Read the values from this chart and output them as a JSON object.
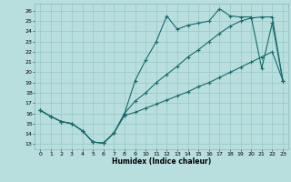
{
  "xlabel": "Humidex (Indice chaleur)",
  "bg_color": "#b8dede",
  "grid_color": "#98c8c8",
  "line_color": "#1a6b6b",
  "xlim": [
    -0.5,
    23.5
  ],
  "ylim": [
    12.5,
    26.7
  ],
  "xticks": [
    0,
    1,
    2,
    3,
    4,
    5,
    6,
    7,
    8,
    9,
    10,
    11,
    12,
    13,
    14,
    15,
    16,
    17,
    18,
    19,
    20,
    21,
    22,
    23
  ],
  "yticks": [
    13,
    14,
    15,
    16,
    17,
    18,
    19,
    20,
    21,
    22,
    23,
    24,
    25,
    26
  ],
  "line1_x": [
    0,
    1,
    2,
    3,
    4,
    5,
    6,
    7,
    8,
    9,
    10,
    11,
    12,
    13,
    14,
    15,
    16,
    17,
    18,
    19,
    20,
    21,
    22,
    23
  ],
  "line1_y": [
    16.3,
    15.7,
    15.2,
    15.0,
    14.3,
    13.2,
    13.1,
    14.1,
    16.0,
    19.2,
    21.2,
    23.0,
    25.5,
    24.2,
    24.6,
    24.8,
    25.0,
    26.2,
    25.5,
    25.4,
    25.4,
    20.4,
    24.8,
    19.2
  ],
  "line2_x": [
    0,
    1,
    2,
    3,
    4,
    5,
    6,
    7,
    8,
    9,
    10,
    11,
    12,
    13,
    14,
    15,
    16,
    17,
    18,
    19,
    20,
    21,
    22,
    23
  ],
  "line2_y": [
    16.3,
    15.7,
    15.2,
    15.0,
    14.3,
    13.2,
    13.1,
    14.1,
    16.0,
    17.2,
    18.0,
    19.0,
    19.8,
    20.6,
    21.5,
    22.2,
    23.0,
    23.8,
    24.5,
    25.0,
    25.3,
    25.4,
    25.4,
    19.2
  ],
  "line3_x": [
    0,
    1,
    2,
    3,
    4,
    5,
    6,
    7,
    8,
    9,
    10,
    11,
    12,
    13,
    14,
    15,
    16,
    17,
    18,
    19,
    20,
    21,
    22,
    23
  ],
  "line3_y": [
    16.3,
    15.7,
    15.2,
    15.0,
    14.3,
    13.2,
    13.1,
    14.1,
    15.8,
    16.1,
    16.5,
    16.9,
    17.3,
    17.7,
    18.1,
    18.6,
    19.0,
    19.5,
    20.0,
    20.5,
    21.0,
    21.5,
    22.0,
    19.2
  ]
}
